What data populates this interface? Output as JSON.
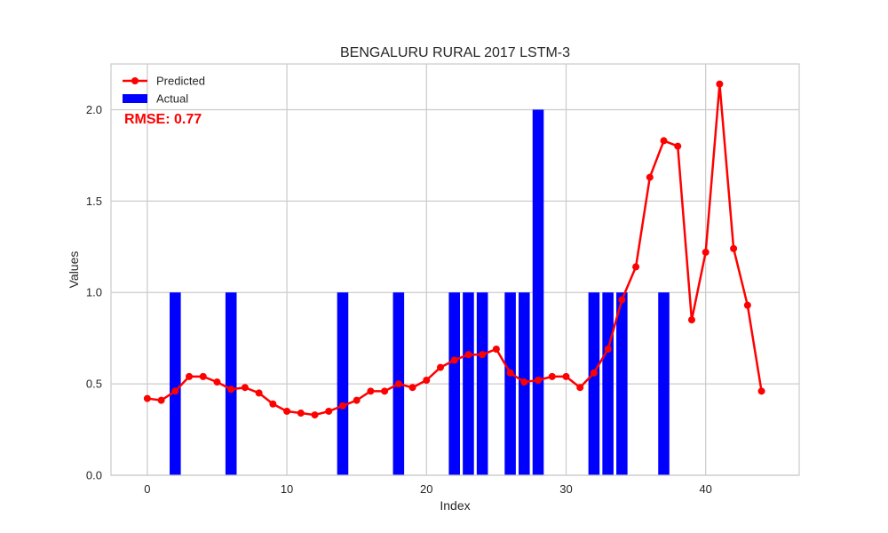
{
  "chart_data": {
    "type": "bar+line",
    "title": "BENGALURU RURAL 2017 LSTM-3",
    "xlabel": "Index",
    "ylabel": "Values",
    "xlim": [
      -2.6,
      46.7
    ],
    "ylim": [
      0,
      2.25
    ],
    "xticks": [
      0,
      10,
      20,
      30,
      40
    ],
    "yticks": [
      0.0,
      0.5,
      1.0,
      1.5,
      2.0
    ],
    "ytick_labels": [
      "0.0",
      "0.5",
      "1.0",
      "1.5",
      "2.0"
    ],
    "grid": true,
    "legend_position": "top-left",
    "series": [
      {
        "name": "Predicted",
        "kind": "line",
        "color": "#ff0000",
        "x": [
          0,
          1,
          2,
          3,
          4,
          5,
          6,
          7,
          8,
          9,
          10,
          11,
          12,
          13,
          14,
          15,
          16,
          17,
          18,
          19,
          20,
          21,
          22,
          23,
          24,
          25,
          26,
          27,
          28,
          29,
          30,
          31,
          32,
          33,
          34,
          35,
          36,
          37,
          38,
          39,
          40,
          41,
          42,
          43,
          44
        ],
        "values": [
          0.42,
          0.41,
          0.46,
          0.54,
          0.54,
          0.51,
          0.47,
          0.48,
          0.45,
          0.39,
          0.35,
          0.34,
          0.33,
          0.35,
          0.38,
          0.41,
          0.46,
          0.46,
          0.5,
          0.48,
          0.52,
          0.59,
          0.63,
          0.66,
          0.66,
          0.69,
          0.56,
          0.51,
          0.52,
          0.54,
          0.54,
          0.48,
          0.56,
          0.69,
          0.96,
          1.14,
          1.63,
          1.83,
          1.8,
          0.85,
          1.22,
          2.14,
          1.24,
          0.93,
          0.46
        ]
      },
      {
        "name": "Actual",
        "kind": "bar",
        "color": "#0000ff",
        "x": [
          0,
          1,
          2,
          3,
          4,
          5,
          6,
          7,
          8,
          9,
          10,
          11,
          12,
          13,
          14,
          15,
          16,
          17,
          18,
          19,
          20,
          21,
          22,
          23,
          24,
          25,
          26,
          27,
          28,
          29,
          30,
          31,
          32,
          33,
          34,
          35,
          36,
          37,
          38,
          39,
          40,
          41,
          42,
          43,
          44
        ],
        "values": [
          0,
          0,
          1,
          0,
          0,
          0,
          1,
          0,
          0,
          0,
          0,
          0,
          0,
          0,
          1,
          0,
          0,
          0,
          1,
          0,
          0,
          0,
          1,
          1,
          1,
          0,
          1,
          1,
          2,
          0,
          0,
          0,
          1,
          1,
          1,
          0,
          0,
          1,
          0,
          0,
          0,
          0,
          0,
          0,
          0
        ]
      }
    ],
    "annotations": [
      {
        "text": "RMSE: 0.77",
        "color": "#ff0000"
      }
    ]
  }
}
